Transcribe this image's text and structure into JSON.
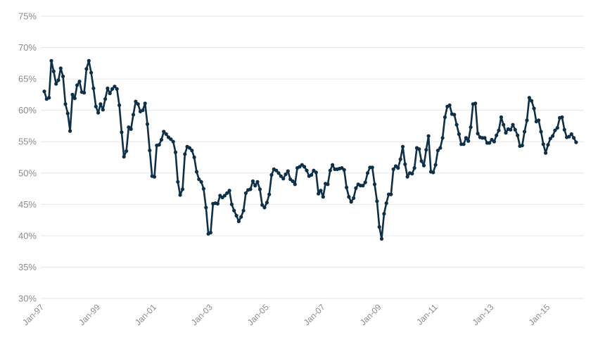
{
  "chart_data": {
    "type": "line",
    "title": "",
    "xlabel": "",
    "ylabel": "",
    "ylim": [
      30,
      75
    ],
    "y_unit": "%",
    "y_ticks": [
      30,
      35,
      40,
      45,
      50,
      55,
      60,
      65,
      70,
      75
    ],
    "x_ticks": [
      "Jan-97",
      "Jan-99",
      "Jan-01",
      "Jan-03",
      "Jan-05",
      "Jan-07",
      "Jan-09",
      "Jan-11",
      "Jan-13",
      "Jan-15"
    ],
    "x_start": "1997-01",
    "x_end": "2015-10",
    "grid": true,
    "line_color": "#0d3048",
    "series": [
      {
        "values": [
          63.0,
          61.8,
          62.0,
          67.9,
          66.2,
          64.2,
          64.8,
          66.7,
          65.4,
          61.0,
          59.5,
          56.7,
          62.5,
          61.9,
          64.0,
          64.6,
          62.9,
          62.8,
          66.6,
          67.9,
          66.0,
          63.5,
          60.6,
          59.6,
          61.0,
          60.1,
          61.8,
          63.5,
          62.7,
          63.4,
          63.8,
          63.4,
          60.8,
          56.5,
          52.6,
          53.5,
          57.3,
          57.0,
          59.3,
          61.4,
          61.0,
          59.8,
          60.0,
          61.1,
          57.8,
          53.6,
          49.5,
          49.4,
          54.4,
          54.5,
          55.3,
          56.6,
          56.2,
          55.7,
          55.4,
          55.0,
          53.3,
          48.6,
          46.5,
          47.4,
          53.0,
          54.2,
          54.0,
          53.6,
          52.5,
          50.2,
          49.0,
          48.6,
          47.5,
          44.5,
          40.3,
          40.5,
          45.1,
          45.2,
          45.1,
          46.4,
          46.1,
          46.4,
          46.8,
          47.2,
          45.0,
          44.0,
          43.2,
          42.3,
          43.0,
          44.0,
          46.8,
          47.3,
          47.4,
          48.7,
          48.0,
          48.6,
          47.4,
          44.9,
          44.5,
          45.3,
          46.6,
          49.7,
          50.6,
          50.4,
          50.0,
          49.5,
          49.1,
          49.8,
          50.3,
          49.0,
          48.7,
          48.2,
          50.8,
          51.0,
          51.3,
          51.0,
          50.4,
          49.5,
          49.7,
          50.4,
          50.1,
          46.7,
          47.2,
          46.2,
          48.3,
          48.2,
          50.4,
          51.3,
          50.6,
          50.6,
          50.7,
          50.8,
          50.5,
          47.7,
          46.2,
          45.4,
          46.0,
          47.6,
          48.2,
          48.0,
          48.0,
          48.5,
          50.0,
          50.9,
          50.9,
          48.2,
          45.5,
          41.4,
          39.5,
          43.5,
          45.2,
          46.6,
          46.6,
          50.6,
          51.1,
          50.8,
          52.2,
          54.2,
          51.4,
          49.4,
          50.0,
          49.9,
          50.8,
          54.0,
          53.8,
          51.9,
          51.2,
          53.7,
          55.9,
          50.2,
          50.1,
          51.3,
          53.6,
          54.0,
          55.6,
          58.9,
          60.6,
          60.8,
          59.4,
          59.3,
          57.7,
          56.2,
          54.6,
          54.6,
          55.6,
          55.1,
          57.3,
          61.0,
          61.1,
          56.3,
          55.7,
          55.6,
          55.6,
          54.8,
          54.8,
          55.3,
          55.0,
          56.0,
          56.8,
          58.9,
          57.7,
          56.4,
          57.0,
          56.9,
          57.7,
          56.9,
          56.0,
          54.3,
          54.4,
          56.6,
          58.4,
          62.0,
          61.5,
          60.3,
          58.2,
          58.4,
          56.6,
          54.6,
          53.2,
          54.5,
          55.5,
          55.9,
          56.8,
          57.2,
          58.8,
          58.9,
          56.9,
          55.7,
          55.8,
          56.2,
          55.6,
          54.9
        ]
      }
    ]
  }
}
